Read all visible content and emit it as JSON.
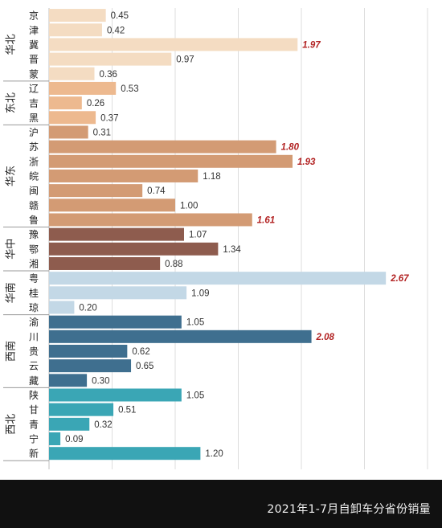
{
  "chart_data": {
    "type": "bar",
    "orientation": "horizontal",
    "title": "2021年1-7月自卸车分省份销量",
    "xlim": [
      0,
      3.0
    ],
    "grid": true,
    "highlight_color": "#b22222",
    "regions": [
      {
        "name": "华北",
        "provinces": [
          "京",
          "津",
          "冀",
          "晋",
          "蒙"
        ],
        "values": [
          0.45,
          0.42,
          1.97,
          0.97,
          0.36
        ],
        "labels": [
          "0.45",
          "0.42",
          "1.97",
          "0.97",
          "0.36"
        ],
        "highlight": [
          false,
          false,
          true,
          false,
          false
        ],
        "color": "#f4dcc2"
      },
      {
        "name": "东北",
        "provinces": [
          "辽",
          "吉",
          "黑"
        ],
        "values": [
          0.53,
          0.26,
          0.37
        ],
        "labels": [
          "0.53",
          "0.26",
          "0.37"
        ],
        "highlight": [
          false,
          false,
          false
        ],
        "color": "#edb98f"
      },
      {
        "name": "华东",
        "provinces": [
          "沪",
          "苏",
          "浙",
          "皖",
          "闽",
          "赣",
          "鲁"
        ],
        "values": [
          0.31,
          1.8,
          1.93,
          1.18,
          0.74,
          1.0,
          1.61
        ],
        "labels": [
          "0.31",
          "1.80",
          "1.93",
          "1.18",
          "0.74",
          "1.00",
          "1.61"
        ],
        "highlight": [
          false,
          true,
          true,
          false,
          false,
          false,
          true
        ],
        "color": "#d39b74"
      },
      {
        "name": "华中",
        "provinces": [
          "豫",
          "鄂",
          "湘"
        ],
        "values": [
          1.07,
          1.34,
          0.88
        ],
        "labels": [
          "1.07",
          "1.34",
          "0.88"
        ],
        "highlight": [
          false,
          false,
          false
        ],
        "color": "#8e5c4e"
      },
      {
        "name": "华南",
        "provinces": [
          "粤",
          "桂",
          "琼"
        ],
        "values": [
          2.67,
          1.09,
          0.2
        ],
        "labels": [
          "2.67",
          "1.09",
          "0.20"
        ],
        "highlight": [
          true,
          false,
          false
        ],
        "color": "#c3d8e6"
      },
      {
        "name": "西南",
        "provinces": [
          "渝",
          "川",
          "贵",
          "云",
          "藏"
        ],
        "values": [
          1.05,
          2.08,
          0.62,
          0.65,
          0.3
        ],
        "labels": [
          "1.05",
          "2.08",
          "0.62",
          "0.65",
          "0.30"
        ],
        "highlight": [
          false,
          true,
          false,
          false,
          false
        ],
        "color": "#3f6f8f"
      },
      {
        "name": "西北",
        "provinces": [
          "陕",
          "甘",
          "青",
          "宁",
          "新"
        ],
        "values": [
          1.05,
          0.51,
          0.32,
          0.09,
          1.2
        ],
        "labels": [
          "1.05",
          "0.51",
          "0.32",
          "0.09",
          "1.20"
        ],
        "highlight": [
          false,
          false,
          false,
          false,
          false
        ],
        "color": "#3aa6b5"
      }
    ]
  }
}
